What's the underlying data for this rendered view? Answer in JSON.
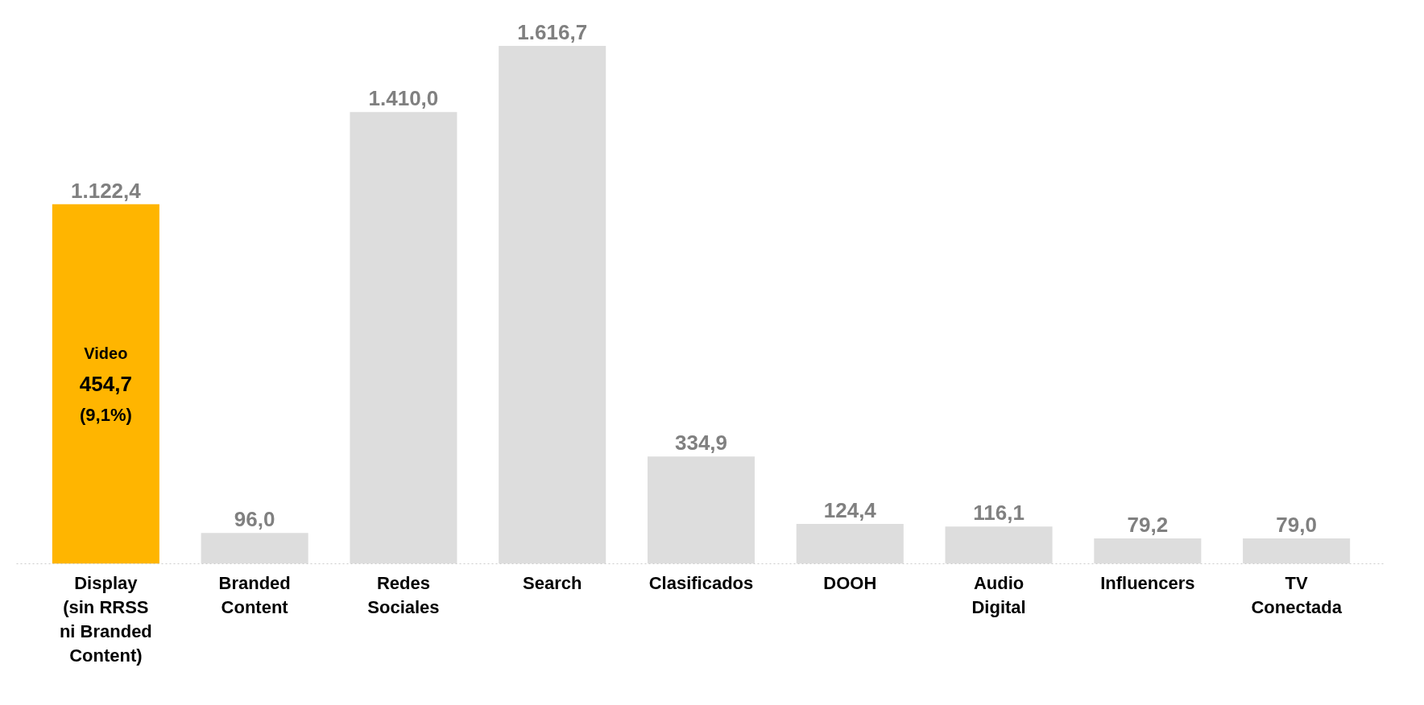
{
  "chart_data": {
    "type": "bar",
    "categories": [
      "Display\n(sin RRSS\nni Branded\nContent)",
      "Branded\nContent",
      "Redes\nSociales",
      "Search",
      "Clasificados",
      "DOOH",
      "Audio\nDigital",
      "Influencers",
      "TV\nConectada"
    ],
    "values": [
      1122.4,
      96.0,
      1410.0,
      1616.7,
      334.9,
      124.4,
      116.1,
      79.2,
      79.0
    ],
    "colors": [
      "#ffb500",
      "#dddddd",
      "#dddddd",
      "#dddddd",
      "#dddddd",
      "#dddddd",
      "#dddddd",
      "#dddddd",
      "#dddddd"
    ],
    "value_labels": [
      "1.122,4",
      "96,0",
      "1.410,0",
      "1.616,7",
      "334,9",
      "124,4",
      "116,1",
      "79,2",
      "79,0"
    ],
    "annotations": [
      "Video",
      "454,7",
      "(9,1%)"
    ],
    "tick_labels": "x"
  }
}
